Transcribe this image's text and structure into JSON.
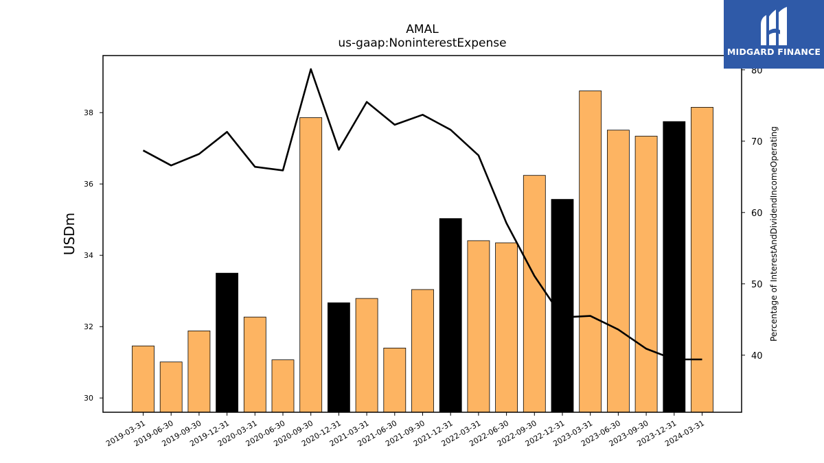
{
  "chart_data": {
    "type": "bar",
    "title": "AMAL",
    "subtitle": "us-gaap:NoninterestExpense",
    "ylabel": "USDm",
    "y2label": "Percentage of InterestAndDividendIncomeOperating",
    "ylim": [
      29.6,
      39.6
    ],
    "y2lim": [
      32.0,
      82.0
    ],
    "yticks": [
      30,
      32,
      34,
      36,
      38
    ],
    "y2ticks": [
      40,
      50,
      60,
      70,
      80
    ],
    "categories": [
      "2019-03-31",
      "2019-06-30",
      "2019-09-30",
      "2019-12-31",
      "2020-03-31",
      "2020-06-30",
      "2020-09-30",
      "2020-12-31",
      "2021-03-31",
      "2021-06-30",
      "2021-09-30",
      "2021-12-31",
      "2022-03-31",
      "2022-06-30",
      "2022-09-30",
      "2022-12-31",
      "2023-03-31",
      "2023-06-30",
      "2023-09-30",
      "2023-12-31",
      "2024-03-31"
    ],
    "series": [
      {
        "type": "bar",
        "values": [
          31.46,
          31.01,
          31.88,
          33.5,
          32.27,
          31.07,
          37.86,
          32.67,
          32.79,
          31.4,
          33.04,
          35.03,
          34.41,
          34.35,
          36.24,
          35.57,
          38.61,
          37.51,
          37.34,
          37.75,
          38.15
        ]
      },
      {
        "type": "line",
        "axis": "right",
        "values": [
          68.7,
          66.6,
          68.2,
          71.3,
          66.4,
          65.9,
          80.1,
          68.8,
          75.5,
          72.3,
          73.7,
          71.6,
          68.0,
          58.5,
          51.1,
          45.3,
          45.5,
          43.6,
          40.9,
          39.4,
          39.4
        ]
      }
    ],
    "colors": {
      "bar_default": "#fdb462",
      "bar_q4": "#000000",
      "line": "#000000"
    }
  },
  "logo": {
    "text": "MIDGARD FINANCE",
    "icon": "midgard-logo-icon",
    "background": "#2f5aa8"
  }
}
